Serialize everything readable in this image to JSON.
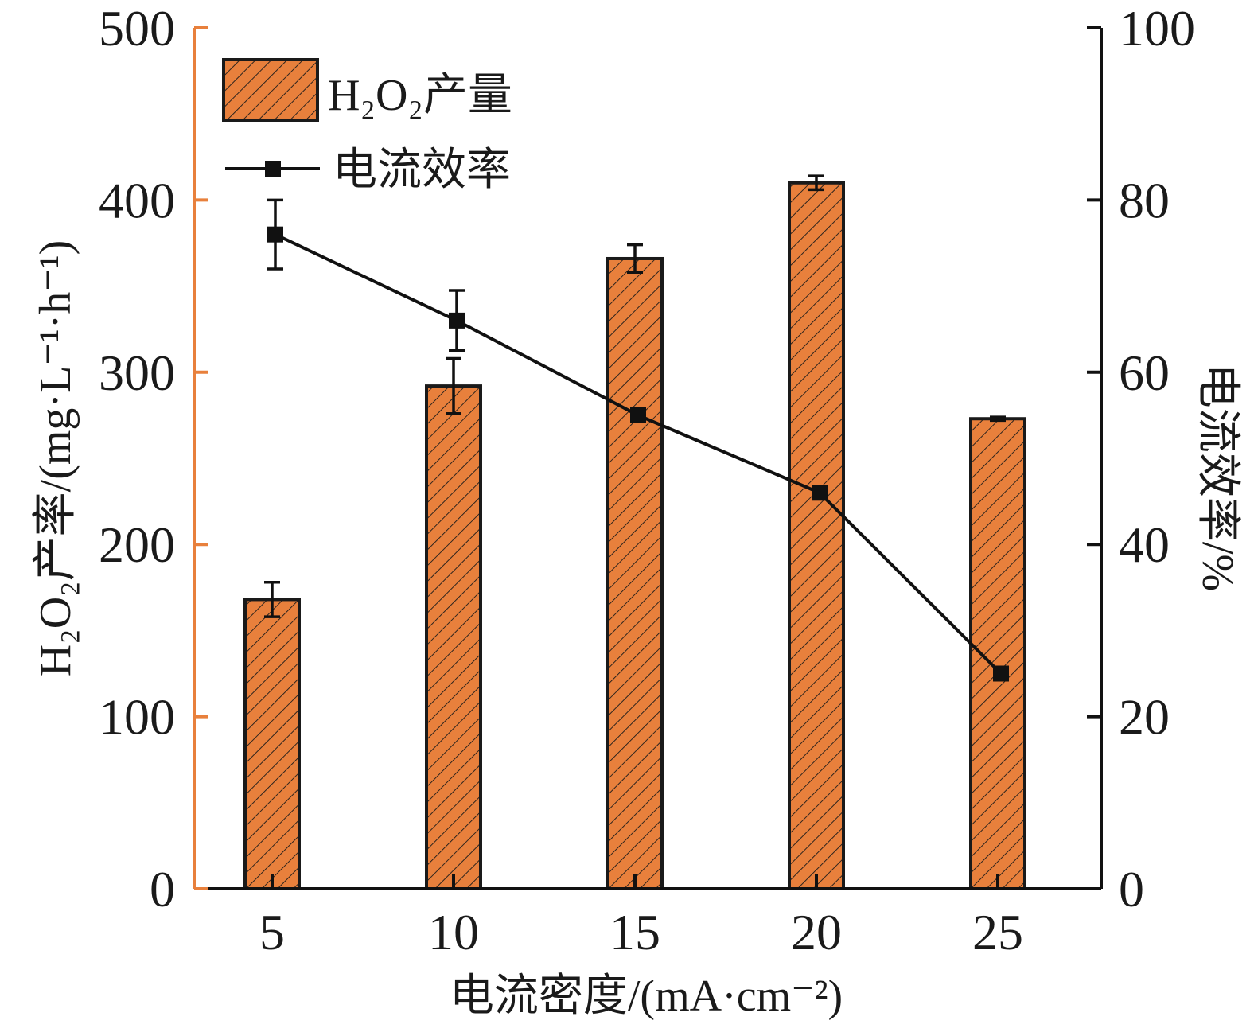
{
  "chart_data": {
    "type": "bar",
    "categories": [
      "5",
      "10",
      "15",
      "20",
      "25"
    ],
    "xlabel": "电流密度/(mA·cm⁻²)",
    "ylabel_left": "H₂O₂产率/(mg·L⁻¹·h⁻¹)",
    "ylabel_right": "电流效率/%",
    "ylim_left": [
      0,
      500
    ],
    "ylim_right": [
      0,
      100
    ],
    "yticks_left": [
      "0",
      "100",
      "200",
      "300",
      "400",
      "500"
    ],
    "yticks_right": [
      "0",
      "20",
      "40",
      "60",
      "80",
      "100"
    ],
    "grid": false,
    "legend_position": "top-left",
    "series": [
      {
        "name": "H₂O₂产量",
        "type": "bar",
        "axis": "left",
        "values": [
          168,
          292,
          366,
          410,
          273
        ],
        "errors": [
          10,
          16,
          8,
          4,
          1
        ],
        "color": "#E8803C",
        "hatch": "diagonal"
      },
      {
        "name": "电流效率",
        "type": "line",
        "axis": "right",
        "marker": "square",
        "values": [
          76,
          66,
          55,
          46,
          25
        ],
        "errors": [
          4,
          3.5,
          0.6,
          0.4,
          0.3
        ],
        "color": "#111111"
      }
    ],
    "left_axis_color": "#E8803C",
    "right_axis_color": "#111111"
  }
}
